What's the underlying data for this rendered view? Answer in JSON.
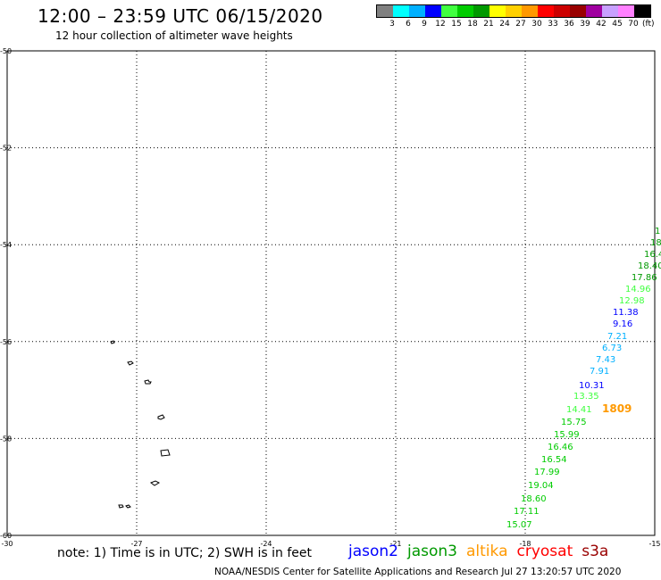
{
  "header": {
    "title": "12:00 – 23:59 UTC 06/15/2020",
    "subtitle": "12 hour collection of altimeter wave heights"
  },
  "legend": {
    "colors": [
      "#808080",
      "#00ffff",
      "#00b0ff",
      "#0000ff",
      "#40ff40",
      "#00cc00",
      "#009900",
      "#ffff00",
      "#ffd000",
      "#ff9900",
      "#ff0000",
      "#cc0000",
      "#990000",
      "#a000a0",
      "#c8a0ff",
      "#ff80ff",
      "#000000"
    ],
    "labels": [
      "3",
      "6",
      "9",
      "12",
      "15",
      "18",
      "21",
      "24",
      "27",
      "30",
      "33",
      "36",
      "39",
      "42",
      "45",
      "70"
    ],
    "unit": "(ft)"
  },
  "map": {
    "lon_ticks": [
      "-30",
      "-27",
      "-24",
      "-21",
      "-18",
      "-15"
    ],
    "lat_ticks": [
      "-50",
      "-52",
      "-54",
      "-56",
      "-58",
      "-60"
    ],
    "lon_range": [
      -30,
      -15
    ],
    "lat_range": [
      -60,
      -50
    ],
    "grid": true,
    "observations": [
      {
        "text": "1.",
        "color": "#009900"
      },
      {
        "text": "18",
        "color": "#009900"
      },
      {
        "text": "16.4",
        "color": "#009900"
      },
      {
        "text": "18.40",
        "color": "#009900"
      },
      {
        "text": "17.86",
        "color": "#009900"
      },
      {
        "text": "14.96",
        "color": "#40ff40"
      },
      {
        "text": "12.98",
        "color": "#40ff40"
      },
      {
        "text": "11.38",
        "color": "#0000ff"
      },
      {
        "text": "9.16",
        "color": "#0000ff"
      },
      {
        "text": "7.21",
        "color": "#00b0ff"
      },
      {
        "text": "6.73",
        "color": "#00b0ff"
      },
      {
        "text": "7.43",
        "color": "#00b0ff"
      },
      {
        "text": "7.91",
        "color": "#00b0ff"
      },
      {
        "text": "10.31",
        "color": "#0000ff"
      },
      {
        "text": "13.35",
        "color": "#40ff40"
      },
      {
        "text": "14.41",
        "color": "#40ff40"
      },
      {
        "text": "1809",
        "color": "#ff9900",
        "bold": true
      },
      {
        "text": "15.75",
        "color": "#00cc00"
      },
      {
        "text": "15.99",
        "color": "#00cc00"
      },
      {
        "text": "16.46",
        "color": "#00cc00"
      },
      {
        "text": "16.54",
        "color": "#00cc00"
      },
      {
        "text": "17.99",
        "color": "#00cc00"
      },
      {
        "text": "19.04",
        "color": "#00cc00"
      },
      {
        "text": "18.60",
        "color": "#00cc00"
      },
      {
        "text": "17.11",
        "color": "#00cc00"
      },
      {
        "text": "15.07",
        "color": "#00cc00"
      }
    ]
  },
  "footer": {
    "note": "note:  1) Time is in UTC;  2) SWH is in feet",
    "satellites": [
      {
        "name": "jason2",
        "color": "#0000ff"
      },
      {
        "name": "jason3",
        "color": "#009900"
      },
      {
        "name": "altika",
        "color": "#ff9900"
      },
      {
        "name": "cryosat",
        "color": "#ff0000"
      },
      {
        "name": "s3a",
        "color": "#990000"
      }
    ],
    "credit": "NOAA/NESDIS Center for Satellite Applications and Research     Jul 27 13:20:57 UTC 2020"
  }
}
